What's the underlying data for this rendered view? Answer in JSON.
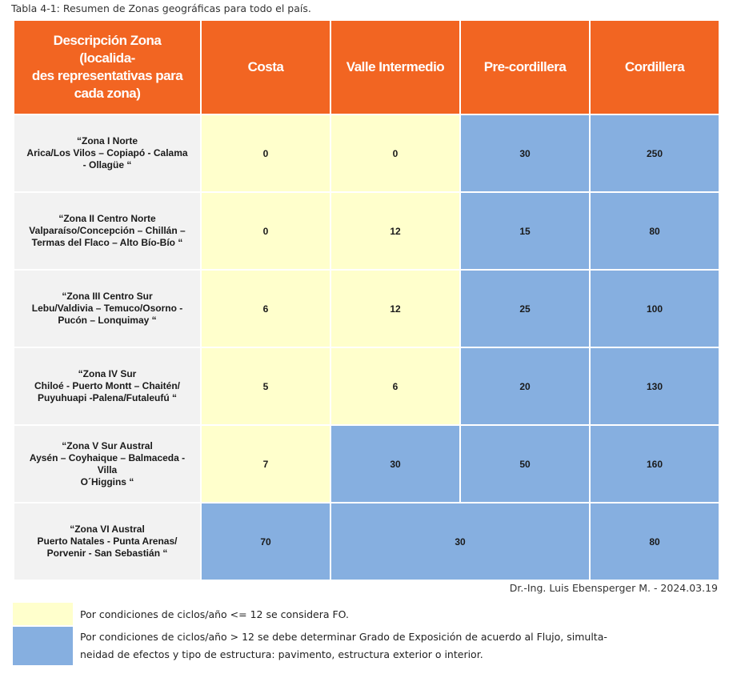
{
  "caption": "Tabla 4-1: Resumen de Zonas geográficas para todo el país.",
  "headers": {
    "desc_lines": [
      "Descripción Zona (localida-",
      "des representativas para",
      "cada zona)"
    ],
    "costa": "Costa",
    "valle": "Valle Intermedio",
    "precordillera": "Pre-cordillera",
    "cordillera": "Cordillera"
  },
  "rows": [
    {
      "desc": [
        "“Zona I Norte",
        "Arica/Los Vilos – Copiapó - Calama",
        "- Ollagüe “"
      ],
      "costa": "0",
      "valle": "0",
      "precordillera": "30",
      "cordillera": "250"
    },
    {
      "desc": [
        "“Zona II Centro Norte",
        "Valparaíso/Concepción – Chillán –",
        "Termas del Flaco – Alto Bío-Bío “"
      ],
      "costa": "0",
      "valle": "12",
      "precordillera": "15",
      "cordillera": "80"
    },
    {
      "desc": [
        "“Zona III Centro Sur",
        "Lebu/Valdivia – Temuco/Osorno -",
        "Pucón – Lonquimay “"
      ],
      "costa": "6",
      "valle": "12",
      "precordillera": "25",
      "cordillera": "100"
    },
    {
      "desc": [
        "“Zona IV Sur",
        "Chiloé - Puerto Montt – Chaitén/",
        "Puyuhuapi -Palena/Futaleufú “"
      ],
      "costa": "5",
      "valle": "6",
      "precordillera": "20",
      "cordillera": "130"
    },
    {
      "desc": [
        "“Zona V Sur Austral",
        "Aysén – Coyhaique – Balmaceda -",
        "Villa",
        "O´Higgins “"
      ],
      "costa": "7",
      "valle": "30",
      "precordillera": "50",
      "cordillera": "160"
    },
    {
      "desc": [
        "“Zona VI Austral",
        "Puerto Natales - Punta Arenas/",
        "Porvenir - San Sebastián “"
      ],
      "costa": "70",
      "valle_precordillera": "30",
      "cordillera": "80"
    }
  ],
  "author": "Dr.-Ing. Luis Ebensperger M. - 2024.03.19",
  "legend": {
    "yellow": "Por condiciones de ciclos/año <= 12 se considera FO.",
    "blue_line1": "Por condiciones de ciclos/año > 12 se debe determinar Grado de Exposición de acuerdo al Flujo, simulta-",
    "blue_line2": "neidad de efectos y tipo de estructura: pavimento, estructura exterior o interior."
  },
  "colors": {
    "header_orange": "#f26522",
    "fo_yellow": "#ffffcc",
    "exposure_blue": "#86afe0",
    "desc_gray": "#f2f2f2"
  }
}
